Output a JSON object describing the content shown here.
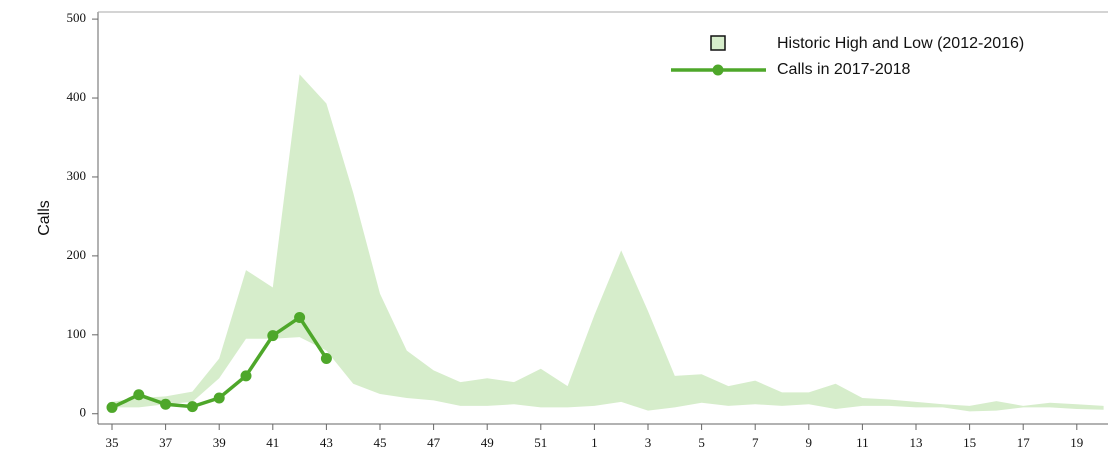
{
  "chart_data": {
    "type": "line",
    "y_label": "Calls",
    "categories": [
      "35",
      null,
      "37",
      null,
      "39",
      null,
      "41",
      null,
      "43",
      null,
      "45",
      null,
      "47",
      null,
      "49",
      null,
      "51",
      null,
      "1",
      null,
      "3",
      null,
      "5",
      null,
      "7",
      null,
      "9",
      null,
      "11",
      null,
      "13",
      null,
      "15",
      null,
      "17",
      null,
      "19",
      null
    ],
    "series": [
      {
        "name": "Historic High and Low (2012-2016)",
        "color": "#d6edcb",
        "high": [
          15,
          20,
          22,
          28,
          70,
          182,
          160,
          430,
          393,
          280,
          152,
          80,
          55,
          40,
          45,
          40,
          57,
          35,
          125,
          207,
          130,
          48,
          50,
          35,
          42,
          27,
          27,
          38,
          20,
          18,
          15,
          12,
          10,
          16,
          10,
          14,
          12,
          10
        ],
        "low": [
          8,
          8,
          12,
          15,
          45,
          95,
          95,
          97,
          80,
          38,
          25,
          20,
          17,
          10,
          10,
          12,
          8,
          8,
          10,
          15,
          4,
          8,
          14,
          10,
          12,
          10,
          12,
          6,
          10,
          10,
          8,
          8,
          3,
          4,
          8,
          8,
          6,
          5
        ]
      },
      {
        "name": "Calls in 2017-2018",
        "color": "#4ea72a",
        "values": [
          8,
          24,
          12,
          9,
          20,
          48,
          99,
          122,
          70,
          null,
          null,
          null,
          null,
          null,
          null,
          null,
          null,
          null,
          null,
          null,
          null,
          null,
          null,
          null,
          null,
          null,
          null,
          null,
          null,
          null,
          null,
          null,
          null,
          null,
          null,
          null,
          null,
          null
        ]
      }
    ],
    "ylim": [
      -13,
      509
    ],
    "yticks": [
      0,
      100,
      200,
      300,
      400,
      500
    ],
    "legend": "upper right"
  }
}
